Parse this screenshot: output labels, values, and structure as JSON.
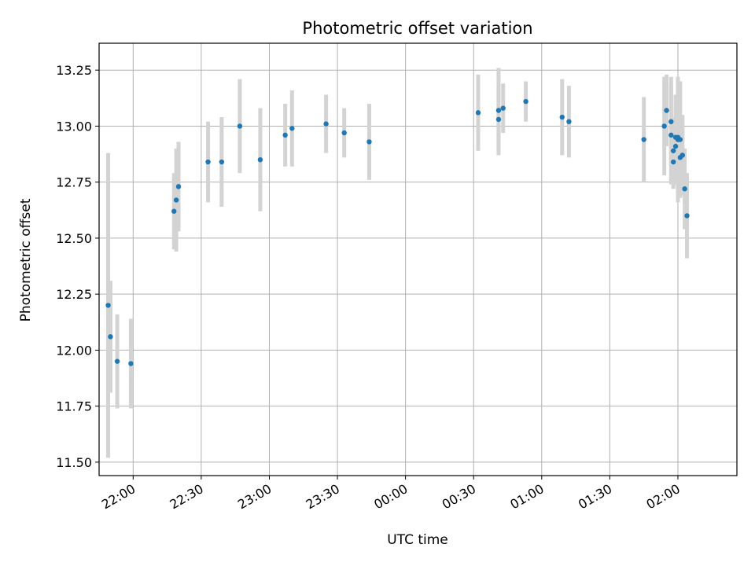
{
  "chart_data": {
    "type": "scatter",
    "title": "Photometric offset variation",
    "xlabel": "UTC time",
    "ylabel": "Photometric offset",
    "x_ticks": [
      "22:00",
      "22:30",
      "23:00",
      "23:30",
      "00:00",
      "00:30",
      "01:00",
      "01:30",
      "02:00"
    ],
    "y_ticks": [
      "11.50",
      "11.75",
      "12.00",
      "12.25",
      "12.50",
      "12.75",
      "13.00",
      "13.25"
    ],
    "xlim": [
      "21:45",
      "02:26"
    ],
    "ylim": [
      11.44,
      13.37
    ],
    "grid": true,
    "legend": "none",
    "point_color": "#1f77b4",
    "errorbar_color": "#d3d3d3",
    "points": [
      {
        "x": "21:49",
        "y": 12.2,
        "err": 0.68
      },
      {
        "x": "21:50",
        "y": 12.06,
        "err": 0.25
      },
      {
        "x": "21:53",
        "y": 11.95,
        "err": 0.21
      },
      {
        "x": "21:59",
        "y": 11.94,
        "err": 0.2
      },
      {
        "x": "22:18",
        "y": 12.62,
        "err": 0.17
      },
      {
        "x": "22:19",
        "y": 12.67,
        "err": 0.23
      },
      {
        "x": "22:20",
        "y": 12.73,
        "err": 0.2
      },
      {
        "x": "22:33",
        "y": 12.84,
        "err": 0.18
      },
      {
        "x": "22:39",
        "y": 12.84,
        "err": 0.2
      },
      {
        "x": "22:47",
        "y": 13.0,
        "err": 0.21
      },
      {
        "x": "22:56",
        "y": 12.85,
        "err": 0.23
      },
      {
        "x": "23:07",
        "y": 12.96,
        "err": 0.14
      },
      {
        "x": "23:10",
        "y": 12.99,
        "err": 0.17
      },
      {
        "x": "23:25",
        "y": 13.01,
        "err": 0.13
      },
      {
        "x": "23:33",
        "y": 12.97,
        "err": 0.11
      },
      {
        "x": "23:44",
        "y": 12.93,
        "err": 0.17
      },
      {
        "x": "00:32",
        "y": 13.06,
        "err": 0.17
      },
      {
        "x": "00:41",
        "y": 13.07,
        "err": 0.19
      },
      {
        "x": "00:41",
        "y": 13.03,
        "err": 0.16
      },
      {
        "x": "00:43",
        "y": 13.08,
        "err": 0.11
      },
      {
        "x": "00:53",
        "y": 13.11,
        "err": 0.09
      },
      {
        "x": "01:09",
        "y": 13.04,
        "err": 0.17
      },
      {
        "x": "01:12",
        "y": 13.02,
        "err": 0.16
      },
      {
        "x": "01:45",
        "y": 12.94,
        "err": 0.19
      },
      {
        "x": "01:54",
        "y": 13.0,
        "err": 0.22
      },
      {
        "x": "01:55",
        "y": 13.07,
        "err": 0.16
      },
      {
        "x": "01:57",
        "y": 13.02,
        "err": 0.2
      },
      {
        "x": "01:57",
        "y": 12.96,
        "err": 0.22
      },
      {
        "x": "01:58",
        "y": 12.84,
        "err": 0.12
      },
      {
        "x": "01:58",
        "y": 12.89,
        "err": 0.15
      },
      {
        "x": "01:59",
        "y": 12.91,
        "err": 0.17
      },
      {
        "x": "01:59",
        "y": 12.95,
        "err": 0.19
      },
      {
        "x": "02:00",
        "y": 12.95,
        "err": 0.25
      },
      {
        "x": "02:00",
        "y": 12.94,
        "err": 0.28
      },
      {
        "x": "02:01",
        "y": 12.94,
        "err": 0.26
      },
      {
        "x": "02:01",
        "y": 12.86,
        "err": 0.18
      },
      {
        "x": "02:02",
        "y": 12.87,
        "err": 0.18
      },
      {
        "x": "02:02",
        "y": 12.87,
        "err": 0.16
      },
      {
        "x": "02:03",
        "y": 12.72,
        "err": 0.18
      },
      {
        "x": "02:04",
        "y": 12.6,
        "err": 0.19
      }
    ]
  }
}
